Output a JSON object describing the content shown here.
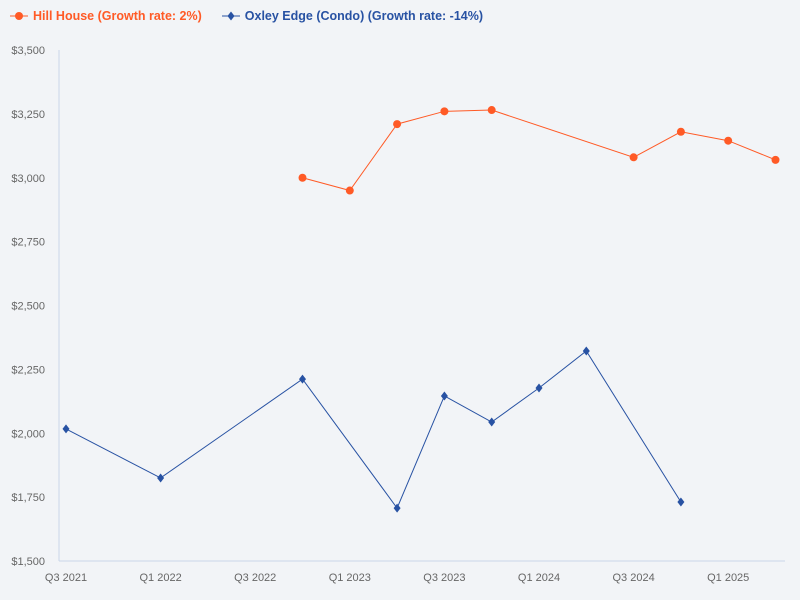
{
  "chart_data": {
    "type": "line",
    "title": "",
    "xlabel": "",
    "ylabel": "",
    "x_categories": [
      "Q3 2021",
      "Q4 2021",
      "Q1 2022",
      "Q2 2022",
      "Q3 2022",
      "Q4 2022",
      "Q1 2023",
      "Q2 2023",
      "Q3 2023",
      "Q4 2023",
      "Q1 2024",
      "Q2 2024",
      "Q3 2024",
      "Q4 2024",
      "Q1 2025",
      "Q2 2025"
    ],
    "x_tick_labels": [
      "Q3 2021",
      "Q1 2022",
      "Q3 2022",
      "Q1 2023",
      "Q3 2023",
      "Q1 2024",
      "Q3 2024",
      "Q1 2025"
    ],
    "ylim": [
      1500,
      3500
    ],
    "y_tick_labels": [
      "$1,500",
      "$1,750",
      "$2,000",
      "$2,250",
      "$2,500",
      "$2,750",
      "$3,000",
      "$3,250",
      "$3,500"
    ],
    "y_ticks": [
      1500,
      1750,
      2000,
      2250,
      2500,
      2750,
      3000,
      3250,
      3500
    ],
    "grid": false,
    "legend_position": "top-left",
    "series": [
      {
        "name": "Hill House (Growth rate: 2%)",
        "color": "#ff5a26",
        "marker": "circle",
        "points": [
          [
            "Q4 2022",
            3000
          ],
          [
            "Q1 2023",
            2950
          ],
          [
            "Q2 2023",
            3210
          ],
          [
            "Q3 2023",
            3260
          ],
          [
            "Q4 2023",
            3265
          ],
          [
            "Q3 2024",
            3080
          ],
          [
            "Q4 2024",
            3180
          ],
          [
            "Q1 2025",
            3145
          ],
          [
            "Q2 2025",
            3070
          ]
        ]
      },
      {
        "name": "Oxley Edge (Condo) (Growth rate: -14%)",
        "color": "#2852a3",
        "marker": "diamond",
        "points": [
          [
            "Q3 2021",
            2017
          ],
          [
            "Q1 2022",
            1825
          ],
          [
            "Q4 2022",
            2212
          ],
          [
            "Q2 2023",
            1707
          ],
          [
            "Q3 2023",
            2146
          ],
          [
            "Q4 2023",
            2044
          ],
          [
            "Q1 2024",
            2177
          ],
          [
            "Q2 2024",
            2322
          ],
          [
            "Q4 2024",
            1731
          ]
        ]
      }
    ]
  }
}
